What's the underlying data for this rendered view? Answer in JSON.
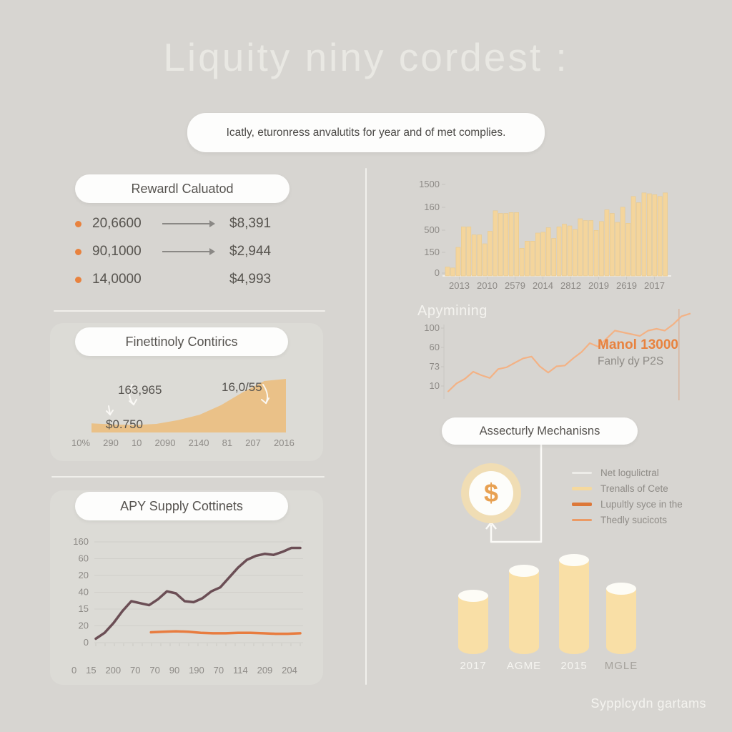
{
  "page": {
    "title": "Liquity niny cordest :",
    "subtitle": "Icatly, eturonress anvalutits for year and of met complies.",
    "footer": "Sypplcydn gartams"
  },
  "colors": {
    "accent_orange": "#e8823e",
    "bar_fill": "#f4d59c",
    "bar_stroke": "#e7c98e",
    "area_fill": "#eac188",
    "dark_line": "#6b4e55",
    "flat_line": "#e87c3f",
    "mining_line": "#f3b285",
    "cylinder_fill": "#f9dfa6",
    "coin_fill": "#f0ddb4",
    "coin_symbol_color": "#e8a152",
    "tick_text": "#8d8a86",
    "grid_line": "#cdcbc6"
  },
  "reward_card": {
    "title": "Rewardl Caluatod",
    "rows": [
      {
        "amount": "20,6600",
        "arrow": true,
        "value": "$8,391"
      },
      {
        "amount": "90,1000",
        "arrow": true,
        "value": "$2,944"
      },
      {
        "amount": "14,0000",
        "arrow": false,
        "value": "$4,993"
      }
    ]
  },
  "security_card": {
    "title": "Assecturly Mechanisns",
    "coin_symbol": "$",
    "legend": [
      {
        "label": "Net logulictral",
        "color": "#edece8"
      },
      {
        "label": "Trenalls of Cete",
        "color": "#f5d99e"
      },
      {
        "label": "Lupultly syce in the",
        "color": "#dd7839"
      },
      {
        "label": "Thedly sucicots",
        "color": "#ec9a64"
      }
    ]
  },
  "chart_data": [
    {
      "id": "growth_area",
      "type": "area",
      "title": "Finettinoly Contirics",
      "x_ticks": [
        "10%",
        "290",
        "10",
        "2090",
        "2140",
        "81",
        "207",
        "2016"
      ],
      "values": [
        0.17,
        0.15,
        0.14,
        0.16,
        0.23,
        0.33,
        0.51,
        0.75,
        0.96,
        1.0
      ],
      "annotations": {
        "left": "163,965",
        "price": "$0.750",
        "right": "16,0/55"
      },
      "grid": false,
      "legend_position": "none"
    },
    {
      "id": "apy_supply",
      "type": "line",
      "title": "APY Supply Cottinets",
      "y_ticks": [
        "160",
        "60",
        "20",
        "40",
        "15",
        "20",
        "0"
      ],
      "x_ticks": [
        "0",
        "15",
        "200",
        "70",
        "70",
        "90",
        "190",
        "70",
        "114",
        "209",
        "204"
      ],
      "series": [
        {
          "name": "supply-dark",
          "values": [
            0.04,
            0.1,
            0.2,
            0.32,
            0.42,
            0.4,
            0.38,
            0.44,
            0.52,
            0.5,
            0.42,
            0.41,
            0.45,
            0.52,
            0.56,
            0.66,
            0.76,
            0.84,
            0.88,
            0.9,
            0.89,
            0.92,
            0.96,
            0.96
          ],
          "x_start": 0.0
        },
        {
          "name": "supply-flat",
          "values": [
            0.105,
            0.11,
            0.115,
            0.11,
            0.1,
            0.095,
            0.095,
            0.1,
            0.1,
            0.095,
            0.09,
            0.09,
            0.095
          ],
          "x_start": 0.27
        }
      ],
      "grid": true,
      "legend_position": "none"
    },
    {
      "id": "volume_bars",
      "type": "bar",
      "title": "",
      "y_ticks": [
        "1500",
        "160",
        "500",
        "150",
        "0"
      ],
      "x_ticks": [
        "2013",
        "2010",
        "2579",
        "2014",
        "2812",
        "2019",
        "2619",
        "2017"
      ],
      "values": [
        0.1,
        0.09,
        0.32,
        0.55,
        0.55,
        0.46,
        0.46,
        0.36,
        0.5,
        0.73,
        0.7,
        0.7,
        0.71,
        0.71,
        0.31,
        0.39,
        0.39,
        0.48,
        0.49,
        0.54,
        0.42,
        0.55,
        0.58,
        0.56,
        0.52,
        0.64,
        0.62,
        0.62,
        0.51,
        0.61,
        0.74,
        0.7,
        0.6,
        0.77,
        0.59,
        0.89,
        0.82,
        0.93,
        0.92,
        0.91,
        0.89,
        0.93
      ],
      "grid": false,
      "legend_position": "none"
    },
    {
      "id": "apymining",
      "type": "line",
      "title": "Apymining",
      "y_ticks": [
        "100",
        "60",
        "73",
        "10"
      ],
      "values": [
        0.1,
        0.19,
        0.24,
        0.32,
        0.28,
        0.25,
        0.35,
        0.37,
        0.42,
        0.47,
        0.49,
        0.38,
        0.31,
        0.38,
        0.39,
        0.47,
        0.54,
        0.64,
        0.6,
        0.69,
        0.78,
        0.76,
        0.74,
        0.72,
        0.78,
        0.8,
        0.78,
        0.85,
        0.94,
        0.97
      ],
      "note_value": "Manol 13000",
      "note_sub": "Fanly dy P2S",
      "marker_x": 0.955,
      "grid": false,
      "legend_position": "none"
    },
    {
      "id": "cylinders",
      "type": "bar",
      "title": "",
      "categories": [
        "2017",
        "AGME",
        "2015",
        "MGLE"
      ],
      "values": [
        0.62,
        0.89,
        1.0,
        0.7
      ],
      "muted_labels": [
        false,
        false,
        false,
        true
      ],
      "grid": false,
      "legend_position": "none"
    }
  ]
}
